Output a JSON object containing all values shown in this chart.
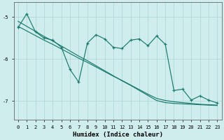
{
  "title": "",
  "xlabel": "Humidex (Indice chaleur)",
  "ylabel": "",
  "bg_color": "#d0eded",
  "grid_color": "#b2d8d8",
  "line_color": "#1a7a6e",
  "x": [
    0,
    1,
    2,
    3,
    4,
    5,
    6,
    7,
    8,
    9,
    10,
    11,
    12,
    13,
    14,
    15,
    16,
    17,
    18,
    19,
    20,
    21,
    22,
    23
  ],
  "y_main": [
    -5.25,
    -4.92,
    -5.35,
    -5.5,
    -5.55,
    -5.72,
    -6.25,
    -6.55,
    -5.62,
    -5.42,
    -5.52,
    -5.72,
    -5.75,
    -5.55,
    -5.52,
    -5.68,
    -5.45,
    -5.65,
    -6.75,
    -6.72,
    -6.98,
    -6.88,
    -6.98,
    -7.05
  ],
  "y_reg1": [
    -5.1,
    -5.22,
    -5.34,
    -5.46,
    -5.57,
    -5.69,
    -5.81,
    -5.93,
    -6.04,
    -6.16,
    -6.28,
    -6.4,
    -6.52,
    -6.63,
    -6.75,
    -6.87,
    -6.99,
    -7.04,
    -7.06,
    -7.07,
    -7.08,
    -7.09,
    -7.1,
    -7.11
  ],
  "y_reg2": [
    -5.22,
    -5.33,
    -5.44,
    -5.55,
    -5.65,
    -5.76,
    -5.87,
    -5.98,
    -6.08,
    -6.19,
    -6.3,
    -6.41,
    -6.51,
    -6.62,
    -6.73,
    -6.84,
    -6.94,
    -6.99,
    -7.02,
    -7.04,
    -7.06,
    -7.08,
    -7.09,
    -7.1
  ],
  "ylim": [
    -7.45,
    -4.65
  ],
  "xlim": [
    -0.5,
    23.5
  ],
  "yticks": [
    -7,
    -6,
    -5
  ],
  "xticks": [
    0,
    1,
    2,
    3,
    4,
    5,
    6,
    7,
    8,
    9,
    10,
    11,
    12,
    13,
    14,
    15,
    16,
    17,
    18,
    19,
    20,
    21,
    22,
    23
  ],
  "figsize": [
    3.2,
    2.0
  ],
  "dpi": 100
}
